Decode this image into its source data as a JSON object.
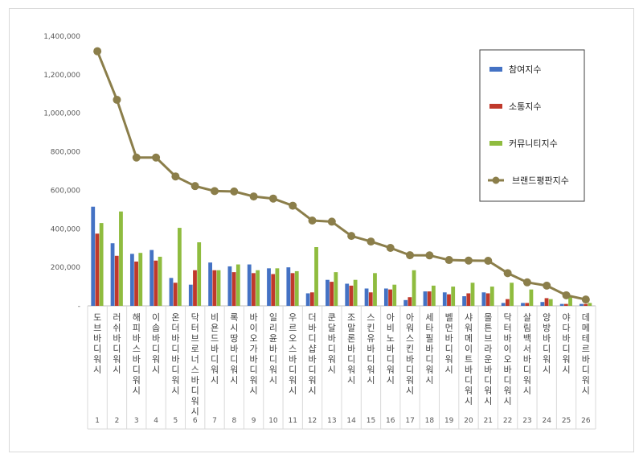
{
  "chart_data": {
    "type": "bar",
    "title": "",
    "xlabel": "",
    "ylabel": "",
    "ylim": [
      0,
      1400000
    ],
    "y_ticks": [
      "-",
      "200,000",
      "400,000",
      "600,000",
      "800,000",
      "1,000,000",
      "1,200,000",
      "1,400,000"
    ],
    "grid": false,
    "legend_position": "top-right",
    "categories": [
      "도브 바디워시",
      "러쉬 바디워시",
      "해피바스 바디워시",
      "이솝 바디워시",
      "온더바디 바디워시",
      "닥터브로너스 바디워시",
      "비욘드 바디워시",
      "록시땅 바디워시",
      "바이오가 바디워시",
      "일리윤 바디워시",
      "우르오스 바디워시",
      "더바디샵 바디워시",
      "쿤달 바디워시",
      "조말론 바디워시",
      "스킨유 바디워시",
      "아비노 바디워시",
      "아워스킨 바디워시",
      "세타필 바디워시",
      "벨먼 바디워시",
      "샤워메이트 바디워시",
      "몰튼브라운 바디워시",
      "닥터바이오 바디워시",
      "살림백서 바디워시",
      "앙방 바디워시",
      "야다 바디워시",
      "데메테르 바디워시"
    ],
    "ranks": [
      "1",
      "2",
      "3",
      "4",
      "5",
      "6",
      "7",
      "8",
      "9",
      "10",
      "11",
      "12",
      "13",
      "14",
      "15",
      "16",
      "17",
      "18",
      "19",
      "20",
      "21",
      "22",
      "23",
      "24",
      "25",
      "26"
    ],
    "series": [
      {
        "name": "참여지수",
        "type": "bar",
        "color": "#4472c4",
        "values": [
          515000,
          325000,
          270000,
          290000,
          145000,
          110000,
          225000,
          205000,
          215000,
          195000,
          200000,
          65000,
          135000,
          115000,
          90000,
          90000,
          30000,
          75000,
          70000,
          50000,
          70000,
          15000,
          15000,
          20000,
          10000,
          10000
        ]
      },
      {
        "name": "소통지수",
        "type": "bar",
        "color": "#c0392b",
        "values": [
          375000,
          260000,
          230000,
          235000,
          120000,
          185000,
          185000,
          175000,
          170000,
          165000,
          170000,
          70000,
          125000,
          105000,
          70000,
          85000,
          45000,
          75000,
          60000,
          65000,
          65000,
          35000,
          15000,
          40000,
          10000,
          10000
        ]
      },
      {
        "name": "커뮤니티지수",
        "type": "bar",
        "color": "#8fbc3f",
        "values": [
          430000,
          490000,
          275000,
          255000,
          405000,
          330000,
          185000,
          215000,
          185000,
          195000,
          180000,
          305000,
          175000,
          135000,
          170000,
          110000,
          185000,
          105000,
          100000,
          120000,
          100000,
          120000,
          85000,
          35000,
          50000,
          15000
        ]
      },
      {
        "name": "브랜드평판지수",
        "type": "line",
        "color": "#8b7e4a",
        "values": [
          1322000,
          1070000,
          770000,
          770000,
          672000,
          622000,
          596000,
          594000,
          568000,
          557000,
          520000,
          443000,
          437000,
          363000,
          334000,
          301000,
          263000,
          262000,
          238000,
          235000,
          234000,
          170000,
          122000,
          105000,
          55000,
          33000
        ]
      }
    ]
  }
}
